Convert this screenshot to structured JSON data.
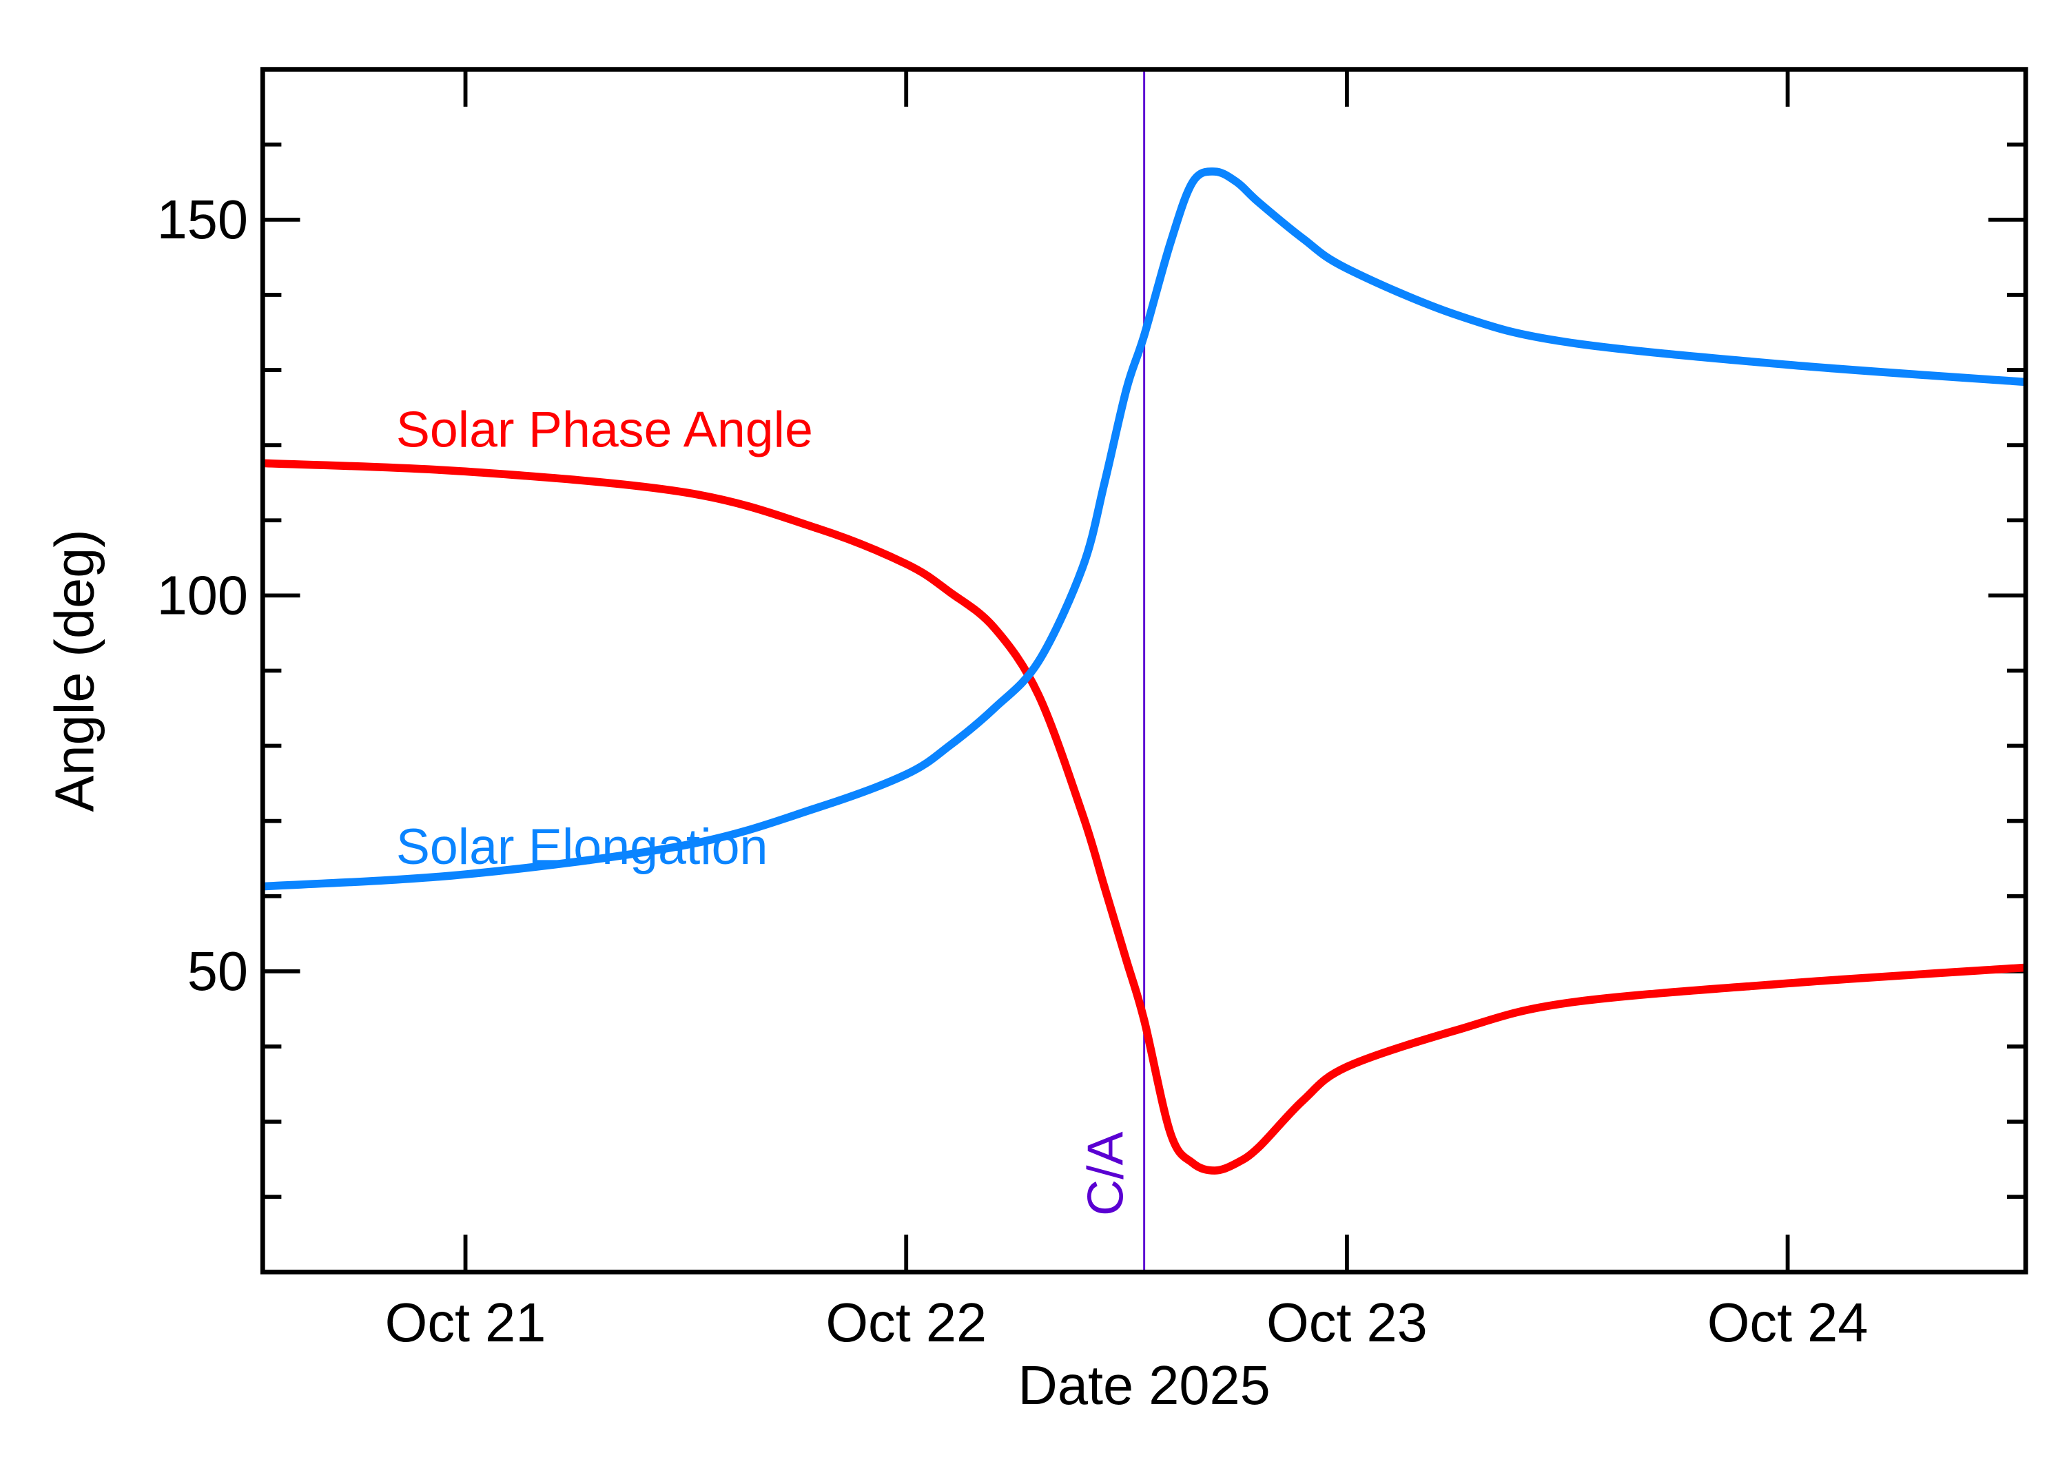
{
  "chart_data": {
    "type": "line",
    "x_label": "Date 2025",
    "y_label": "Angle (deg)",
    "x": [
      20.54,
      21,
      21.5,
      21.8,
      22,
      22.1,
      22.2,
      22.3,
      22.4,
      22.45,
      22.5,
      22.54,
      22.6,
      22.65,
      22.7,
      22.75,
      22.8,
      22.9,
      23,
      23.25,
      23.5,
      24,
      24.54
    ],
    "series": [
      {
        "name": "Solar Phase Angle",
        "color": "#ff0000",
        "values": [
          117.6,
          116.5,
          113.7,
          108.9,
          104.2,
          100.4,
          95.7,
          86.8,
          70.9,
          61.2,
          51.4,
          43.5,
          28.4,
          24.5,
          23.5,
          24.5,
          26.6,
          32.8,
          37.3,
          42.2,
          45.8,
          48.4,
          50.5
        ]
      },
      {
        "name": "Solar Elongation",
        "color": "#0a84ff",
        "values": [
          61.3,
          62.9,
          66.8,
          71.8,
          76.2,
          80.1,
          85.0,
          91.2,
          103.7,
          115.0,
          127.5,
          134.6,
          147.0,
          155.0,
          156.4,
          155.0,
          152.3,
          147.5,
          143.5,
          137.3,
          133.7,
          130.7,
          128.4
        ]
      }
    ],
    "xlim": [
      20.54,
      24.54
    ],
    "xticks": [
      {
        "value": 21,
        "label": "Oct 21"
      },
      {
        "value": 22,
        "label": "Oct 22"
      },
      {
        "value": 23,
        "label": "Oct 23"
      },
      {
        "value": 24,
        "label": "Oct 24"
      }
    ],
    "ylim": [
      10,
      170
    ],
    "yticks": [
      50,
      100,
      150
    ],
    "yminorticks": [
      20,
      30,
      40,
      60,
      70,
      80,
      90,
      110,
      120,
      130,
      140,
      160
    ],
    "marker_line": {
      "x": 22.54,
      "label": "C/A",
      "color": "#5a00d2"
    }
  }
}
